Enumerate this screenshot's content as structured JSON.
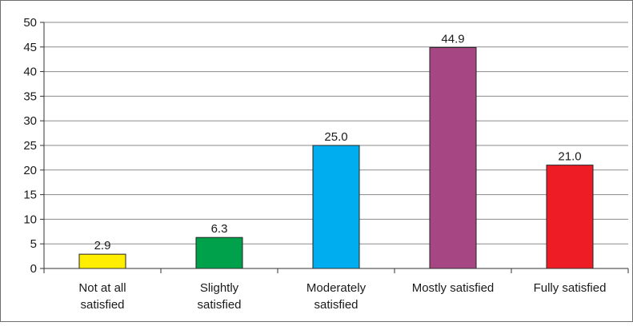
{
  "chart_data": {
    "type": "bar",
    "categories": [
      [
        "Not at all",
        "satisfied"
      ],
      [
        "Slightly",
        "satisfied"
      ],
      [
        "Moderately",
        "satisfied"
      ],
      [
        "Mostly satisfied"
      ],
      [
        "Fully satisfied"
      ]
    ],
    "values": [
      2.9,
      6.3,
      25.0,
      44.9,
      21.0
    ],
    "data_labels": [
      "2.9",
      "6.3",
      "25.0",
      "44.9",
      "21.0"
    ],
    "bar_colors": [
      "#ffee00",
      "#00a14b",
      "#00aeef",
      "#a64783",
      "#ee1c24"
    ],
    "ylim": [
      0,
      50
    ],
    "yticks": [
      0,
      5,
      10,
      15,
      20,
      25,
      30,
      35,
      40,
      45,
      50
    ],
    "grid": true,
    "title": "",
    "xlabel": "",
    "ylabel": "",
    "legend": "none"
  }
}
